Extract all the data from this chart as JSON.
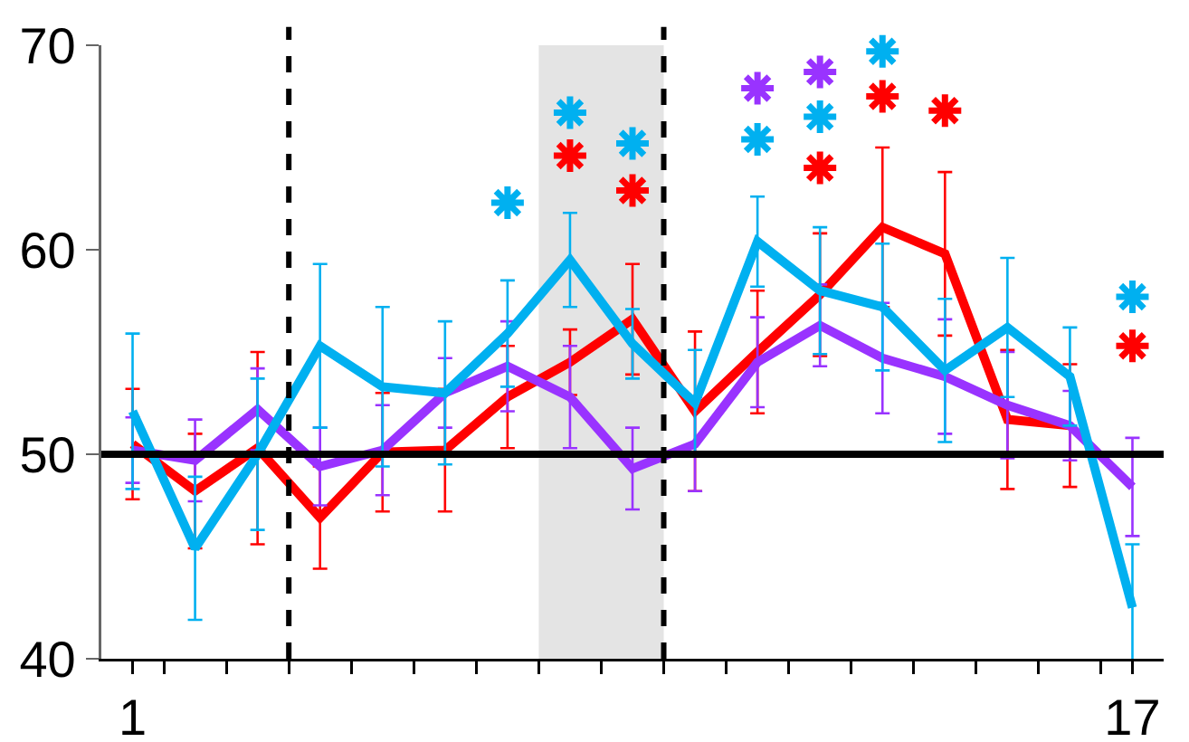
{
  "chart_data": {
    "type": "line",
    "x": [
      1,
      2,
      3,
      4,
      5,
      6,
      7,
      8,
      9,
      10,
      11,
      12,
      13,
      14,
      15,
      16,
      17
    ],
    "series": [
      {
        "color": "#ff0000",
        "values": [
          50.5,
          48.2,
          50.3,
          46.9,
          50.1,
          50.2,
          52.8,
          54.5,
          56.6,
          52.1,
          55.0,
          57.8,
          61.1,
          59.8,
          51.7,
          51.4,
          null
        ],
        "errors": [
          2.7,
          2.8,
          4.7,
          2.5,
          2.9,
          3.0,
          2.5,
          1.6,
          2.7,
          3.9,
          3.0,
          3.0,
          3.9,
          4.0,
          3.4,
          3.0,
          null
        ]
      },
      {
        "color": "#9933ff",
        "values": [
          50.2,
          49.7,
          52.2,
          49.4,
          50.2,
          53.0,
          54.3,
          52.8,
          49.3,
          50.5,
          54.5,
          56.3,
          54.7,
          53.8,
          52.4,
          51.4,
          48.4
        ],
        "errors": [
          1.6,
          2.0,
          2.0,
          1.9,
          2.2,
          1.7,
          2.2,
          2.5,
          2.0,
          2.3,
          2.2,
          2.0,
          2.7,
          2.8,
          2.6,
          1.7,
          2.4
        ]
      },
      {
        "color": "#00b0f0",
        "values": [
          52.1,
          45.4,
          50.0,
          55.3,
          53.3,
          53.0,
          55.9,
          59.5,
          55.4,
          52.5,
          60.4,
          58.0,
          57.2,
          54.1,
          56.2,
          53.8,
          42.5
        ],
        "errors": [
          3.8,
          3.5,
          3.7,
          4.0,
          3.9,
          3.5,
          2.6,
          2.3,
          1.7,
          2.6,
          2.2,
          3.1,
          3.1,
          3.5,
          3.4,
          2.4,
          3.1
        ]
      },
      {
        "type": "scatter",
        "color": "#ff0000",
        "x": [
          8,
          9,
          12,
          13,
          14,
          17
        ],
        "values": [
          64.6,
          62.9,
          64.0,
          67.5,
          66.8,
          55.3
        ]
      },
      {
        "type": "scatter",
        "color": "#9933ff",
        "x": [
          11,
          12
        ],
        "values": [
          67.9,
          68.7
        ]
      },
      {
        "type": "scatter",
        "color": "#00b0f0",
        "x": [
          7,
          8,
          9,
          11,
          12,
          13,
          17
        ],
        "values": [
          62.3,
          66.7,
          65.2,
          65.4,
          66.5,
          69.7,
          57.7
        ]
      }
    ],
    "xlim": [
      0.5,
      17.5
    ],
    "xticks": [
      {
        "value": 1,
        "label": "1"
      },
      {
        "value": 1.5,
        "label": null
      },
      {
        "value": 2.5,
        "label": null
      },
      {
        "value": 3.5,
        "label": null
      },
      {
        "value": 4.5,
        "label": null
      },
      {
        "value": 5.5,
        "label": null
      },
      {
        "value": 6.5,
        "label": null
      },
      {
        "value": 7.5,
        "label": null
      },
      {
        "value": 8.5,
        "label": null
      },
      {
        "value": 9.5,
        "label": null
      },
      {
        "value": 10.5,
        "label": null
      },
      {
        "value": 11.5,
        "label": null
      },
      {
        "value": 12.5,
        "label": null
      },
      {
        "value": 13.5,
        "label": null
      },
      {
        "value": 14.5,
        "label": null
      },
      {
        "value": 15.5,
        "label": null
      },
      {
        "value": 16.5,
        "label": null
      },
      {
        "value": 17,
        "label": "17"
      }
    ],
    "ylim": [
      40,
      70
    ],
    "yticks": [
      40,
      50,
      60,
      70
    ],
    "grid": false,
    "line_style": "solid",
    "ref_lines": [
      {
        "axis": "y",
        "value": 50,
        "color": "#000000",
        "line_style": "solid"
      },
      {
        "axis": "x",
        "value": 3.5,
        "color": "#000000",
        "line_style": "dashed"
      },
      {
        "axis": "x",
        "value": 9.5,
        "color": "#000000",
        "line_style": "dashed"
      }
    ],
    "bands": [
      {
        "axis": "x",
        "from": 7.5,
        "to": 9.5,
        "color": "#e4e4e4"
      }
    ]
  }
}
